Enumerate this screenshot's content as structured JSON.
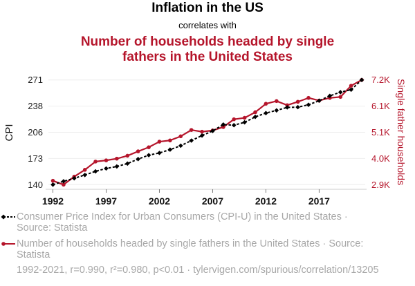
{
  "header": {
    "title": "Inflation in the US",
    "subtitle": "correlates with",
    "title2": "Number of households headed by single fathers in the United States"
  },
  "legend": [
    {
      "label": "Consumer Price Index for Urban Consumers (CPI-U) in the United States · Source: Statista",
      "marker": "diamond",
      "line": "dashed",
      "color": "#000000"
    },
    {
      "label": "Number of households headed by single fathers in the United States · Source: Statista",
      "marker": "circle",
      "line": "solid",
      "color": "#b5152b"
    }
  ],
  "footer": "1992-2021, r=0.990, r²=0.980, p<0.01 · tylervigen.com/spurious/correlation/13205",
  "colors": {
    "series_cpi": "#000000",
    "series_households": "#b5152b",
    "title2": "#b5152b",
    "legend_text": "#a8a8a8",
    "grid": "#eeeeee",
    "axis": "#cccccc"
  },
  "chart_data": {
    "type": "line",
    "title": "Inflation in the US correlates with Number of households headed by single fathers in the United States",
    "xlabel": "",
    "x": [
      1992,
      1993,
      1994,
      1995,
      1996,
      1997,
      1998,
      1999,
      2000,
      2001,
      2002,
      2003,
      2004,
      2005,
      2006,
      2007,
      2008,
      2009,
      2010,
      2011,
      2012,
      2013,
      2014,
      2015,
      2016,
      2017,
      2018,
      2019,
      2020,
      2021
    ],
    "xlim": [
      1992,
      2021
    ],
    "x_ticks": [
      1992,
      1997,
      2002,
      2007,
      2012,
      2017
    ],
    "series": [
      {
        "name": "Consumer Price Index for Urban Consumers (CPI-U) in the United States",
        "axis": "left",
        "style": "dashed-diamond",
        "values": [
          140.3,
          144.5,
          148.2,
          152.4,
          156.9,
          160.5,
          163.0,
          166.6,
          172.2,
          177.1,
          179.9,
          184.0,
          188.9,
          195.3,
          201.6,
          207.3,
          215.3,
          214.5,
          218.1,
          224.9,
          229.6,
          233.0,
          236.7,
          237.0,
          240.0,
          245.1,
          251.1,
          255.7,
          258.8,
          271.0
        ]
      },
      {
        "name": "Number of households headed by single fathers in the United States",
        "axis": "right",
        "style": "solid-circle",
        "values": [
          3060,
          2900,
          3230,
          3510,
          3850,
          3900,
          3970,
          4090,
          4270,
          4440,
          4670,
          4720,
          4890,
          5150,
          5080,
          5130,
          5270,
          5590,
          5650,
          5880,
          6230,
          6340,
          6170,
          6310,
          6470,
          6360,
          6470,
          6510,
          6970,
          7210
        ]
      }
    ],
    "ylabel_left": "CPI",
    "ylim_left": [
      140.3,
      271.0
    ],
    "yticks_left": [
      "140",
      "173",
      "206",
      "238",
      "271"
    ],
    "ylabel_right": "Single father households",
    "ylim_right": [
      2900,
      7210
    ],
    "yticks_right": [
      "2.9K",
      "4.0K",
      "5.1K",
      "6.1K",
      "7.2K"
    ],
    "grid": true,
    "legend_position": "bottom"
  }
}
